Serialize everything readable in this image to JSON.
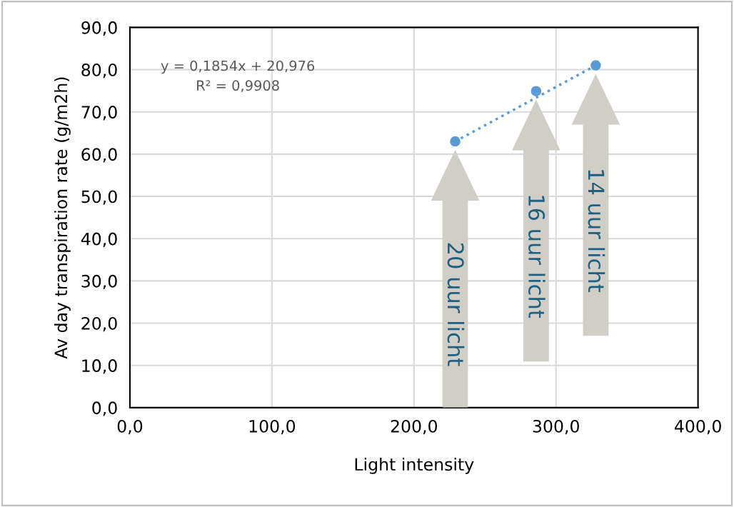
{
  "chart_data": {
    "type": "scatter",
    "xlabel": "Light intensity",
    "ylabel": "Av day transpiration rate (g/m2h)",
    "series": [
      {
        "color": "#5b9bd5",
        "marker": "circle",
        "x": [
          229,
          286,
          328
        ],
        "values": [
          63.0,
          74.9,
          81.0
        ]
      },
      {
        "type": "line",
        "color": "#5b9bd5",
        "line_style": "dotted",
        "marker": "none",
        "x": [
          229,
          328
        ],
        "values": [
          63.0,
          81.0
        ]
      }
    ],
    "xlim": [
      0,
      400
    ],
    "ylim": [
      0,
      90
    ],
    "xticks": [
      {
        "value": 0,
        "label": "0,0"
      },
      {
        "value": 100,
        "label": "100,0"
      },
      {
        "value": 200,
        "label": "200,0"
      },
      {
        "value": 300,
        "label": "300,0"
      },
      {
        "value": 400,
        "label": "400,0"
      }
    ],
    "yticks": [
      {
        "value": 0,
        "label": "0,0"
      },
      {
        "value": 10,
        "label": "10,0"
      },
      {
        "value": 20,
        "label": "20,0"
      },
      {
        "value": 30,
        "label": "30,0"
      },
      {
        "value": 40,
        "label": "40,0"
      },
      {
        "value": 50,
        "label": "50,0"
      },
      {
        "value": 60,
        "label": "60,0"
      },
      {
        "value": 70,
        "label": "70,0"
      },
      {
        "value": 80,
        "label": "80,0"
      },
      {
        "value": 90,
        "label": "90,0"
      }
    ],
    "grid": true,
    "annotations": [
      "y = 0,1854x + 20,976\nR² = 0,9908",
      "20 uur licht",
      "16 uur licht",
      "14 uur licht"
    ]
  }
}
